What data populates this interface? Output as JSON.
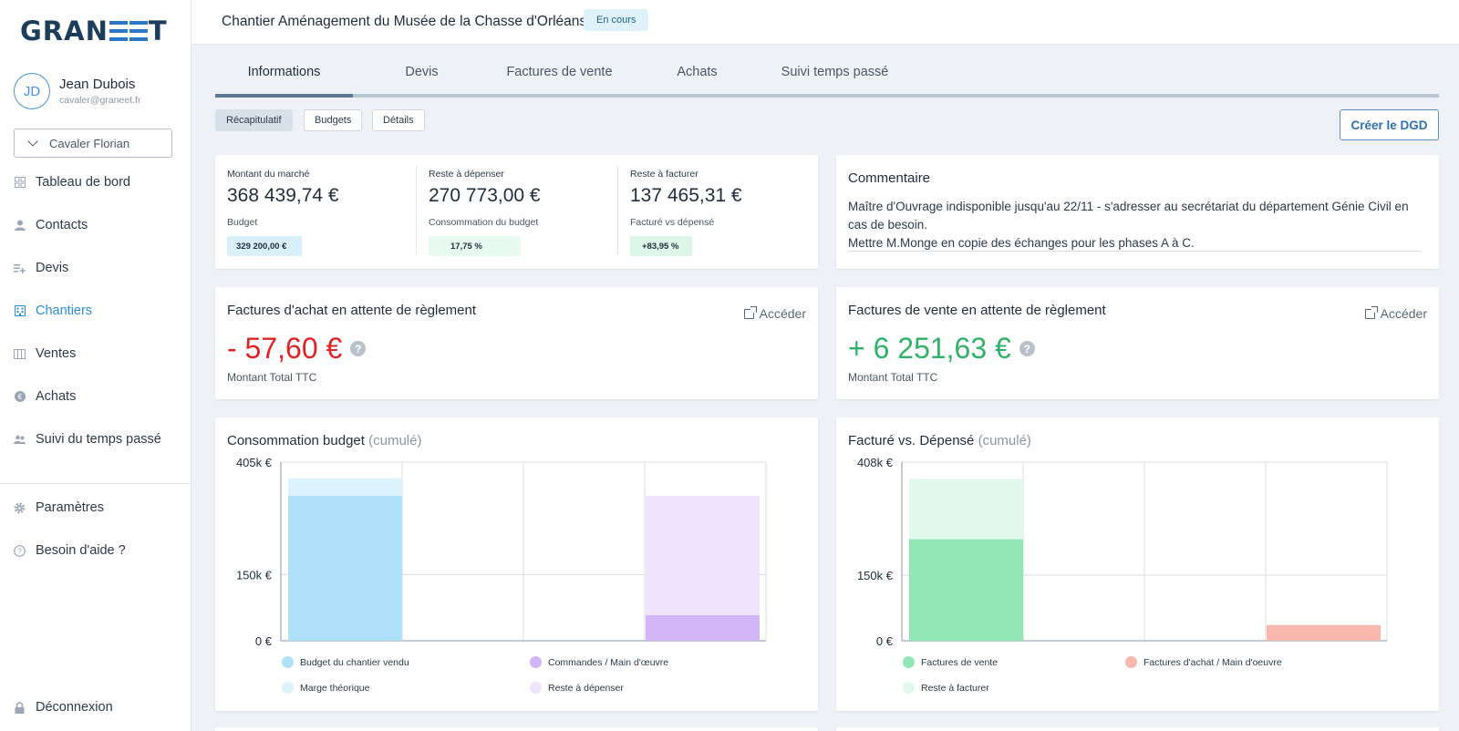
{
  "sidebar": {
    "logo": {
      "left": "GRAN",
      "right": "T"
    },
    "user": {
      "initials": "JD",
      "name": "Jean Dubois",
      "email": "cavaler@graneet.fr"
    },
    "selector": "Cavaler Florian",
    "nav": [
      {
        "label": "Tableau de bord",
        "icon": "dashboard-icon"
      },
      {
        "label": "Contacts",
        "icon": "user-icon"
      },
      {
        "label": "Devis",
        "icon": "list-plus-icon"
      },
      {
        "label": "Chantiers",
        "icon": "building-icon",
        "active": true
      },
      {
        "label": "Ventes",
        "icon": "columns-icon"
      },
      {
        "label": "Achats",
        "icon": "euro-coin-icon"
      },
      {
        "label": "Suivi du temps passé",
        "icon": "users-icon"
      }
    ],
    "settings": "Paramètres",
    "help": "Besoin d'aide ?",
    "logout": "Déconnexion"
  },
  "header": {
    "title": "Chantier Aménagement du Musée de la Chasse d'Orléans",
    "status": "En cours"
  },
  "tabs": [
    "Informations",
    "Devis",
    "Factures de vente",
    "Achats",
    "Suivi temps passé"
  ],
  "subtabs": [
    "Récapitulatif",
    "Budgets",
    "Détails"
  ],
  "dgd_button": "Créer le DGD",
  "kpis": [
    {
      "label": "Montant du marché",
      "value": "368 439,74 €",
      "sub": "Budget",
      "badge": "329 200,00 €",
      "badge_bg": "#d9f0fb"
    },
    {
      "label": "Reste à dépenser",
      "value": "270 773,00 €",
      "sub": "Consommation du budget",
      "badge": "17,75 %",
      "badge_bg": "#e9faf1"
    },
    {
      "label": "Reste à facturer",
      "value": "137 465,31 €",
      "sub": "Facturé vs dépensé",
      "badge": "+83,95 %",
      "badge_bg": "#dcf7e8"
    }
  ],
  "comment": {
    "title": "Commentaire",
    "text": "Maître d'Ouvrage indisponible jusqu'au 22/11 - s'adresser au secrétariat du département Génie Civil en cas de besoin.",
    "text2": "Mettre M.Monge en copie des échanges pour les phases A à C."
  },
  "purchase_invoices": {
    "title": "Factures d'achat en attente de règlement",
    "link": "Accéder",
    "amount": "- 57,60 €",
    "amount_color": "#e02424",
    "sub": "Montant Total TTC"
  },
  "sales_invoices": {
    "title": "Factures de vente en attente de règlement",
    "link": "Accéder",
    "amount": "+ 6 251,63 €",
    "amount_color": "#31b26a",
    "sub": "Montant Total TTC"
  },
  "chart_data": [
    {
      "type": "bar",
      "title": "Consommation budget",
      "subtitle": "(cumulé)",
      "ylim": [
        0,
        405000
      ],
      "ytick_labels": [
        "405k €",
        "150k €",
        "0 €"
      ],
      "yticks": [
        405000,
        150000,
        0
      ],
      "grid": true,
      "stacks": [
        {
          "position": 0,
          "segments": [
            {
              "series": "Budget du chantier vendu",
              "value": 329200,
              "color": "#b0e1fa"
            },
            {
              "series": "Marge théorique",
              "value": 39240,
              "color": "#dcf2fc"
            }
          ]
        },
        {
          "position": 2,
          "segments": [
            {
              "series": "Commandes / Main d'œuvre",
              "value": 58000,
              "color": "#d3b6f7"
            },
            {
              "series": "Reste à dépenser",
              "value": 270773,
              "color": "#efe4fc"
            }
          ]
        }
      ],
      "legend": [
        {
          "label": "Budget du chantier vendu",
          "color": "#b0e1fa"
        },
        {
          "label": "Commandes / Main d'œuvre",
          "color": "#d3b6f7"
        },
        {
          "label": "Marge théorique",
          "color": "#dcf2fc"
        },
        {
          "label": "Reste à dépenser",
          "color": "#efe4fc"
        }
      ]
    },
    {
      "type": "bar",
      "title": "Facturé vs. Dépensé",
      "subtitle": "(cumulé)",
      "ylim": [
        0,
        408000
      ],
      "ytick_labels": [
        "408k €",
        "150k €",
        "0 €"
      ],
      "yticks": [
        408000,
        150000,
        0
      ],
      "grid": true,
      "stacks": [
        {
          "position": 0,
          "segments": [
            {
              "series": "Factures de vente",
              "value": 232000,
              "color": "#90e6b5"
            },
            {
              "series": "Reste à facturer",
              "value": 137465,
              "color": "#e1f9ec"
            }
          ]
        },
        {
          "position": 2,
          "segments": [
            {
              "series": "Factures d'achat / Main d'oeuvre",
              "value": 36000,
              "color": "#f8b8ae"
            }
          ]
        }
      ],
      "legend": [
        {
          "label": "Factures de vente",
          "color": "#90e6b5"
        },
        {
          "label": "Factures d'achat / Main d'oeuvre",
          "color": "#f8b8ae"
        },
        {
          "label": "Reste à facturer",
          "color": "#e1f9ec"
        }
      ]
    }
  ]
}
